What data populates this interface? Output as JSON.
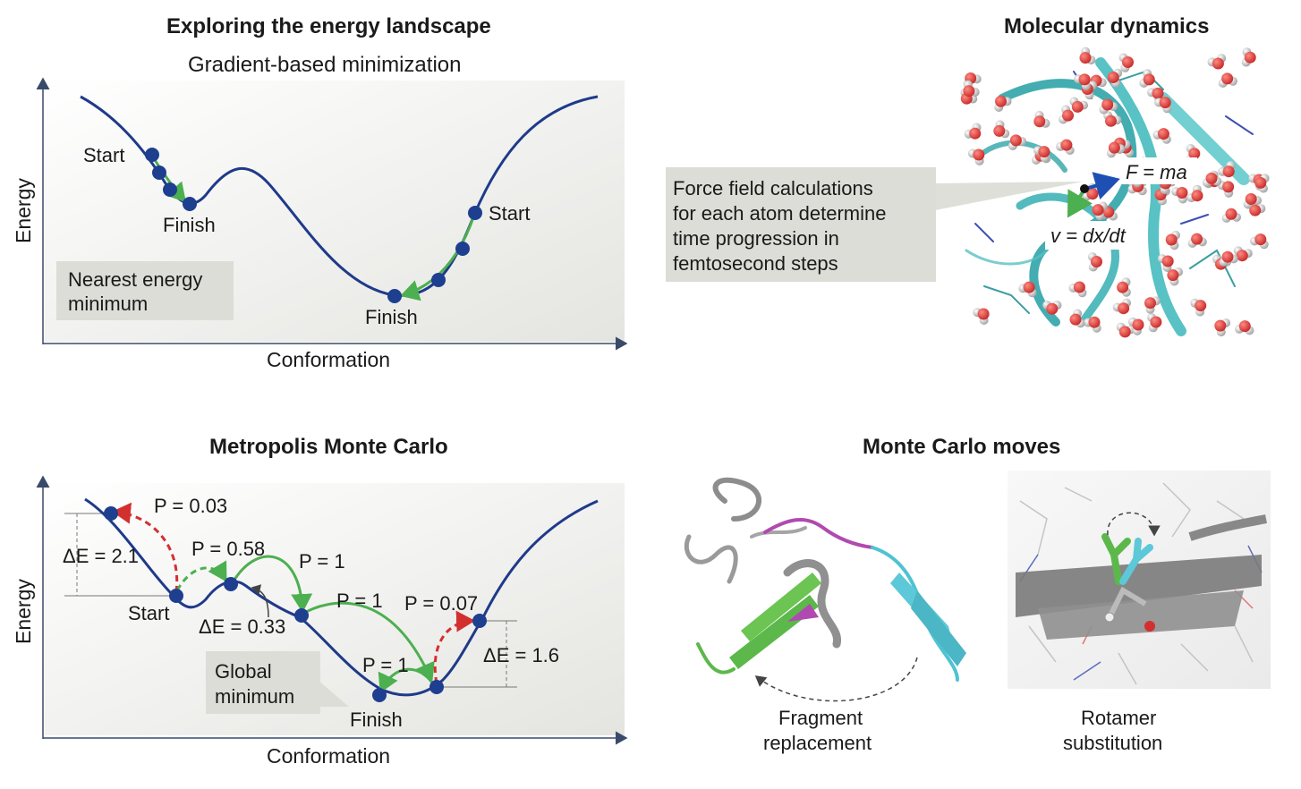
{
  "panel_a": {
    "title": "Exploring the energy landscape",
    "subtitle": "Gradient-based minimization",
    "y_axis": "Energy",
    "x_axis": "Conformation",
    "start_left": "Start",
    "finish_left": "Finish",
    "start_right": "Start",
    "finish_right": "Finish",
    "callout_line1": "Nearest energy",
    "callout_line2": "minimum"
  },
  "panel_b": {
    "title": "Molecular dynamics",
    "callout_lines": [
      "Force field calculations",
      "for each atom determine",
      "time progression in",
      "femtosecond steps"
    ],
    "force_eq": "F = ma",
    "velocity_eq": "v = dx/dt"
  },
  "panel_c": {
    "title": "Metropolis Monte Carlo",
    "y_axis": "Energy",
    "x_axis": "Conformation",
    "p1": "P = 0.03",
    "p2": "P = 0.58",
    "p3": "P = 1",
    "p4": "P = 1",
    "p5": "P = 0.07",
    "p6": "P = 1",
    "de1": "ΔE = 2.1",
    "de2": "ΔE = 0.33",
    "de3": "ΔE = 1.6",
    "start": "Start",
    "finish": "Finish",
    "global_line1": "Global",
    "global_line2": "minimum"
  },
  "panel_d": {
    "title": "Monte Carlo moves",
    "frag_line1": "Fragment",
    "frag_line2": "replacement",
    "rot_line1": "Rotamer",
    "rot_line2": "substitution"
  },
  "colors": {
    "curve": "#1f3a8a",
    "point": "#1e3f8f",
    "green_arrow": "#4caf50",
    "red_arrow": "#d32f2f",
    "callout": "#dcddd6"
  }
}
